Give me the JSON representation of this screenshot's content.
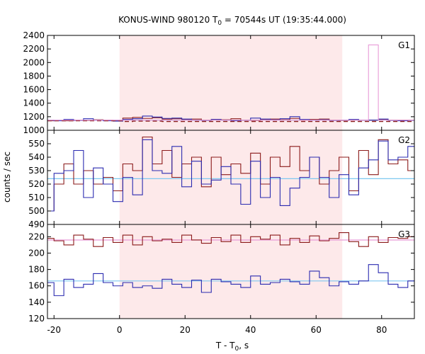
{
  "chart_data": {
    "type": "line",
    "title": "KONUS-WIND 980120 T",
    "title_sub": "0",
    "title_rest": " = 70544s UT (19:35:44.000)",
    "xlabel": "T - T",
    "xlabel_sub": "0",
    "xlabel_rest": ", s",
    "ylabel": "counts / sec",
    "xlim": [
      -22,
      90
    ],
    "x_ticks": [
      -20,
      0,
      20,
      40,
      60,
      80
    ],
    "shaded_interval": [
      0,
      68
    ],
    "colors": {
      "shade": "#fde9ea",
      "frame": "#000000",
      "red": "#8b1a1a",
      "blue": "#2b2bb0",
      "light_blue": "#7ec8f0",
      "pink": "#e89bd8",
      "dashed": "#8b1a1a"
    },
    "x_edges": [
      -22,
      -20,
      -17,
      -14,
      -11,
      -8,
      -5,
      -2,
      1,
      4,
      7,
      10,
      13,
      16,
      19,
      22,
      25,
      28,
      31,
      34,
      37,
      40,
      43,
      46,
      49,
      52,
      55,
      58,
      61,
      64,
      67,
      70,
      73,
      76,
      79,
      82,
      85,
      88,
      90
    ],
    "panels": [
      {
        "label": "G1",
        "ylim": [
          1000,
          2400
        ],
        "y_ticks": [
          1000,
          1200,
          1400,
          1600,
          1800,
          2000,
          2200,
          2400
        ],
        "series": [
          {
            "color": "red",
            "dash": false,
            "values": [
              1140,
              1145,
              1140,
              1150,
              1145,
              1155,
              1150,
              1145,
              1180,
              1190,
              1175,
              1185,
              1165,
              1170,
              1160,
              1165,
              1150,
              1160,
              1155,
              1170,
              1150,
              1145,
              1160,
              1165,
              1155,
              1175,
              1150,
              1160,
              1165,
              1150,
              1145,
              1150,
              1150,
              1150,
              1160,
              1150,
              1150,
              1150
            ]
          },
          {
            "color": "blue",
            "dash": false,
            "values": [
              1150,
              1140,
              1160,
              1145,
              1170,
              1150,
              1140,
              1135,
              1160,
              1170,
              1210,
              1195,
              1175,
              1180,
              1165,
              1150,
              1145,
              1160,
              1150,
              1140,
              1150,
              1180,
              1165,
              1155,
              1170,
              1200,
              1160,
              1150,
              1155,
              1145,
              1150,
              1160,
              1150,
              1150,
              1165,
              1145,
              1140,
              1145
            ]
          },
          {
            "color": "dashed",
            "dash": true,
            "values": [
              1140,
              1140,
              1140,
              1140,
              1140,
              1140,
              1140,
              1140,
              1130,
              1135,
              1135,
              1135,
              1130,
              1130,
              1130,
              1130,
              1130,
              1130,
              1130,
              1130,
              1130,
              1130,
              1130,
              1130,
              1130,
              1130,
              1130,
              1130,
              1130,
              1130,
              1130,
              1130,
              1130,
              1130,
              1130,
              1130,
              1130,
              1130
            ]
          },
          {
            "color": "pink",
            "dash": false,
            "values": [
              1150,
              1150,
              1150,
              1150,
              1150,
              1150,
              1150,
              1150,
              1150,
              1150,
              1150,
              1150,
              1150,
              1150,
              1150,
              1150,
              1150,
              1150,
              1150,
              1150,
              1150,
              1150,
              1150,
              1150,
              1150,
              1150,
              1150,
              1150,
              1150,
              1150,
              1150,
              1150,
              1150,
              2260,
              1150,
              1150,
              1150,
              1150
            ]
          }
        ],
        "bg_lines": [
          {
            "color": "light_blue",
            "y": 1150
          }
        ]
      },
      {
        "label": "G2",
        "ylim": [
          490,
          560
        ],
        "y_ticks": [
          490,
          500,
          510,
          520,
          530,
          540,
          550
        ],
        "series": [
          {
            "color": "red",
            "dash": false,
            "values": [
              500,
              520,
              535,
              520,
              530,
              520,
              525,
              515,
              535,
              530,
              555,
              535,
              545,
              525,
              535,
              540,
              518,
              540,
              527,
              535,
              528,
              543,
              520,
              540,
              533,
              548,
              530,
              540,
              520,
              530,
              540,
              515,
              545,
              527,
              553,
              535,
              538,
              530
            ]
          },
          {
            "color": "blue",
            "dash": false,
            "values": [
              500,
              528,
              530,
              545,
              510,
              532,
              520,
              507,
              525,
              512,
              553,
              530,
              528,
              548,
              518,
              537,
              520,
              523,
              533,
              520,
              505,
              537,
              510,
              525,
              504,
              517,
              525,
              540,
              525,
              510,
              527,
              512,
              532,
              538,
              552,
              538,
              540,
              548
            ]
          }
        ],
        "bg_lines": [
          {
            "color": "light_blue",
            "y": 524
          }
        ]
      },
      {
        "label": "G3",
        "ylim": [
          120,
          235
        ],
        "y_ticks": [
          120,
          140,
          160,
          180,
          200,
          220
        ],
        "series": [
          {
            "color": "red",
            "dash": false,
            "values": [
              218,
              215,
              210,
              222,
              217,
              208,
              219,
              213,
              222,
              210,
              220,
              215,
              217,
              213,
              222,
              216,
              212,
              219,
              214,
              222,
              213,
              220,
              217,
              222,
              210,
              218,
              213,
              221,
              215,
              218,
              225,
              214,
              208,
              220,
              213,
              219,
              218,
              220
            ]
          },
          {
            "color": "blue",
            "dash": false,
            "values": [
              164,
              148,
              168,
              158,
              162,
              175,
              164,
              160,
              164,
              158,
              160,
              157,
              168,
              162,
              158,
              167,
              152,
              168,
              165,
              162,
              158,
              172,
              162,
              164,
              168,
              165,
              162,
              178,
              170,
              160,
              165,
              162,
              166,
              186,
              176,
              162,
              158,
              166
            ]
          }
        ],
        "bg_lines": [
          {
            "color": "pink",
            "y": 216
          },
          {
            "color": "light_blue",
            "y": 166
          }
        ]
      }
    ]
  }
}
